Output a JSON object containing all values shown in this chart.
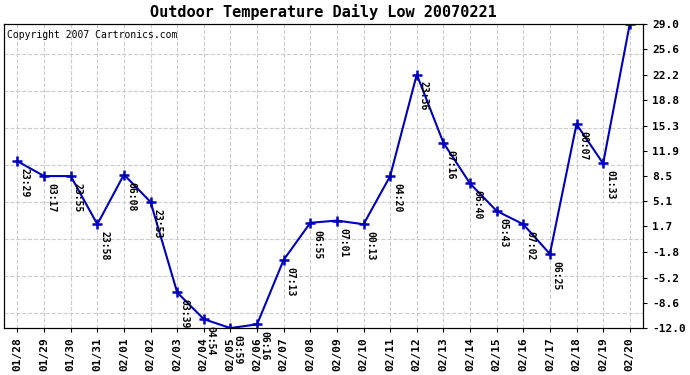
{
  "title": "Outdoor Temperature Daily Low 20070221",
  "copyright_text": "Copyright 2007 Cartronics.com",
  "x_labels": [
    "01/28",
    "01/29",
    "01/30",
    "01/31",
    "02/01",
    "02/02",
    "02/03",
    "02/04",
    "02/05",
    "02/06",
    "02/07",
    "02/08",
    "02/09",
    "02/10",
    "02/11",
    "02/12",
    "02/13",
    "02/14",
    "02/15",
    "02/16",
    "02/17",
    "02/18",
    "02/19",
    "02/20"
  ],
  "y_values": [
    10.5,
    8.5,
    8.5,
    2.0,
    8.7,
    5.0,
    -7.2,
    -10.8,
    -12.0,
    -11.5,
    -2.8,
    2.2,
    2.5,
    2.0,
    8.5,
    22.2,
    13.0,
    7.5,
    3.8,
    2.0,
    -2.0,
    15.5,
    10.2,
    29.0
  ],
  "annotations": [
    "23:29",
    "03:17",
    "23:55",
    "23:58",
    "06:08",
    "23:53",
    "03:39",
    "04:54",
    "03:59",
    "06:16",
    "07:13",
    "06:55",
    "07:01",
    "00:13",
    "04:20",
    "23:36",
    "07:16",
    "06:40",
    "05:43",
    "07:02",
    "06:25",
    "00:07",
    "01:33",
    ""
  ],
  "y_ticks": [
    29.0,
    25.6,
    22.2,
    18.8,
    15.3,
    11.9,
    8.5,
    5.1,
    1.7,
    -1.8,
    -5.2,
    -8.6,
    -12.0
  ],
  "ylim": [
    -12.0,
    29.0
  ],
  "line_color": "#0000BB",
  "marker_color": "#0000BB",
  "bg_color": "#FFFFFF",
  "grid_color": "#CCCCCC",
  "title_fontsize": 11,
  "annot_fontsize": 7,
  "tick_fontsize": 8,
  "copyright_fontsize": 7
}
